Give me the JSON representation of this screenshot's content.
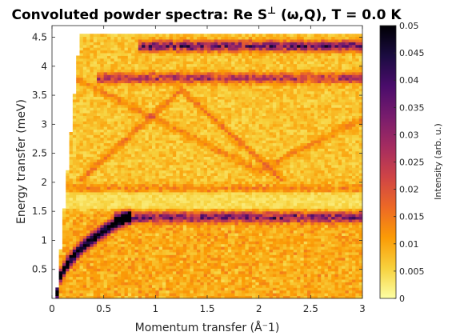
{
  "chart_data": {
    "type": "heatmap",
    "title": "Convoluted powder spectra: Re S",
    "title_sup": "⊥",
    "title_rest": " (ω,Q), T =   0.0 K",
    "xlabel": "Momentum transfer (Å⁻1)",
    "ylabel": "Energy transfer (meV)",
    "xlim": [
      0,
      3
    ],
    "ylim": [
      0,
      4.7
    ],
    "xticks": [
      0,
      0.5,
      1,
      1.5,
      2,
      2.5,
      3
    ],
    "xtick_labels": [
      "0",
      "0.5",
      "1",
      "1.5",
      "2",
      "2.5",
      "3"
    ],
    "yticks": [
      0.5,
      1,
      1.5,
      2,
      2.5,
      3,
      3.5,
      4,
      4.5
    ],
    "ytick_labels": [
      "0.5",
      "1",
      "1.5",
      "2",
      "2.5",
      "3",
      "3.5",
      "4",
      "4.5"
    ],
    "colorbar": {
      "label": "Intensity (arb. u.)",
      "range": [
        0,
        0.05
      ],
      "ticks": [
        0,
        0.005,
        0.01,
        0.015,
        0.02,
        0.025,
        0.03,
        0.035,
        0.04,
        0.045,
        0.05
      ],
      "tick_labels": [
        "0",
        "0.005",
        "0.01",
        "0.015",
        "0.02",
        "0.025",
        "0.03",
        "0.035",
        "0.04",
        "0.045",
        "0.05"
      ],
      "colormap": "inferno (reversed)",
      "colors": [
        "#fcffa4",
        "#f7d13d",
        "#fb9b06",
        "#ed6925",
        "#cf4446",
        "#a52c60",
        "#781c6d",
        "#4a0c6b",
        "#1b0c41",
        "#000004"
      ]
    },
    "features": [
      {
        "type": "acoustic-branch",
        "q_start": 0.05,
        "e_start": 0.1,
        "q_end": 0.72,
        "e_end": 1.4,
        "peak_intensity": 0.05
      },
      {
        "type": "flat-band",
        "energy": 1.4,
        "q_from": 0.6,
        "q_to": 3.0,
        "intensity": 0.025
      },
      {
        "type": "flat-band",
        "energy": 1.9,
        "q_from": 0.15,
        "q_to": 3.0,
        "intensity": 0.006
      },
      {
        "type": "flat-band",
        "energy": 3.8,
        "q_from": 0.45,
        "q_to": 3.0,
        "intensity": 0.02
      },
      {
        "type": "flat-band",
        "energy": 4.35,
        "q_from": 0.85,
        "q_to": 3.0,
        "intensity": 0.03
      },
      {
        "type": "band-edge",
        "energy": 4.5,
        "q_from": 0.1,
        "q_to": 3.0
      }
    ]
  }
}
